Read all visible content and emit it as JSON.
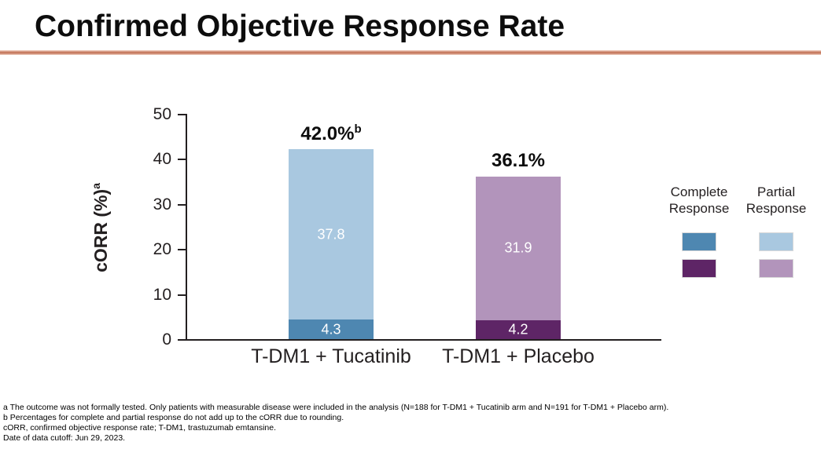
{
  "slide": {
    "title": "Confirmed Objective Response Rate",
    "accent_color": "#c5775c"
  },
  "chart_data": {
    "type": "bar",
    "stacked": true,
    "title": "Confirmed Objective Response Rate",
    "xlabel": "",
    "ylabel": "cORR (%)",
    "ylabel_sup": "a",
    "ylim": [
      0,
      50
    ],
    "yticks": [
      0,
      10,
      20,
      30,
      40,
      50
    ],
    "grid": false,
    "legend_position": "right",
    "categories": [
      "T-DM1 + Tucatinib",
      "T-DM1 + Placebo"
    ],
    "series": [
      {
        "name": "Complete Response",
        "values": [
          4.3,
          4.2
        ],
        "colors": [
          "#4e87b1",
          "#5e2566"
        ]
      },
      {
        "name": "Partial Response",
        "values": [
          37.8,
          31.9
        ],
        "colors": [
          "#a9c8e0",
          "#b294bb"
        ]
      }
    ],
    "totals": [
      {
        "label": "42.0%",
        "sup": "b"
      },
      {
        "label": "36.1%",
        "sup": ""
      }
    ],
    "value_label_color": "#ffffff",
    "axis_color": "#231f20"
  },
  "legend": {
    "columns": [
      {
        "header": "Complete Response",
        "swatches": [
          "#4e87b1",
          "#5e2566"
        ]
      },
      {
        "header": "Partial Response",
        "swatches": [
          "#a9c8e0",
          "#b294bb"
        ]
      }
    ]
  },
  "footnotes": [
    "a The outcome was not formally tested. Only patients with measurable disease were included in the analysis (N=188 for T-DM1 + Tucatinib arm and N=191 for T-DM1 + Placebo arm).",
    "b Percentages for complete and partial response do not add up to the cORR due to rounding.",
    "cORR, confirmed objective response rate; T-DM1, trastuzumab emtansine.",
    "Date of data cutoff: Jun 29, 2023."
  ]
}
